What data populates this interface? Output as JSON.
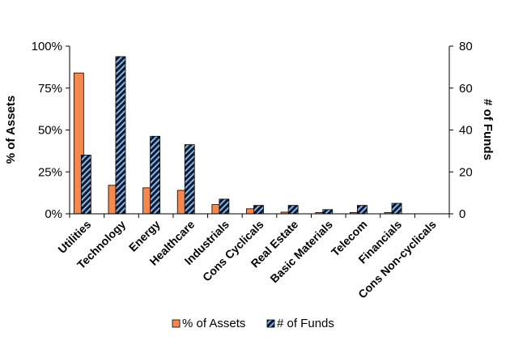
{
  "chart_data": {
    "type": "bar",
    "title": "",
    "categories": [
      "Utilities",
      "Technology",
      "Energy",
      "Healthcare",
      "Industrials",
      "Cons Cyclicals",
      "Real Estate",
      "Basic Materials",
      "Telecom",
      "Financials",
      "Cons Non-cyclicals"
    ],
    "series": [
      {
        "name": "% of Assets",
        "axis": "left",
        "unit": "%",
        "color": "#F4894F",
        "values": [
          84,
          17,
          15.5,
          14,
          5.5,
          3,
          1,
          0.8,
          0.8,
          0.8,
          0
        ]
      },
      {
        "name": "# of Funds",
        "axis": "right",
        "color": "#0B1B33",
        "hatch_color": "#8FB4E3",
        "values": [
          28,
          75,
          37,
          33,
          7,
          4,
          4,
          2,
          4,
          5,
          0
        ]
      }
    ],
    "ylabel_left": "% of Assets",
    "ylabel_right": "# of Funds",
    "ylim_left": [
      0,
      100
    ],
    "yticks_left": [
      "0%",
      "25%",
      "50%",
      "75%",
      "100%"
    ],
    "ylim_right": [
      0,
      80
    ],
    "yticks_right": [
      "0",
      "20",
      "40",
      "60",
      "80"
    ],
    "legend_position": "bottom",
    "grid": false
  }
}
